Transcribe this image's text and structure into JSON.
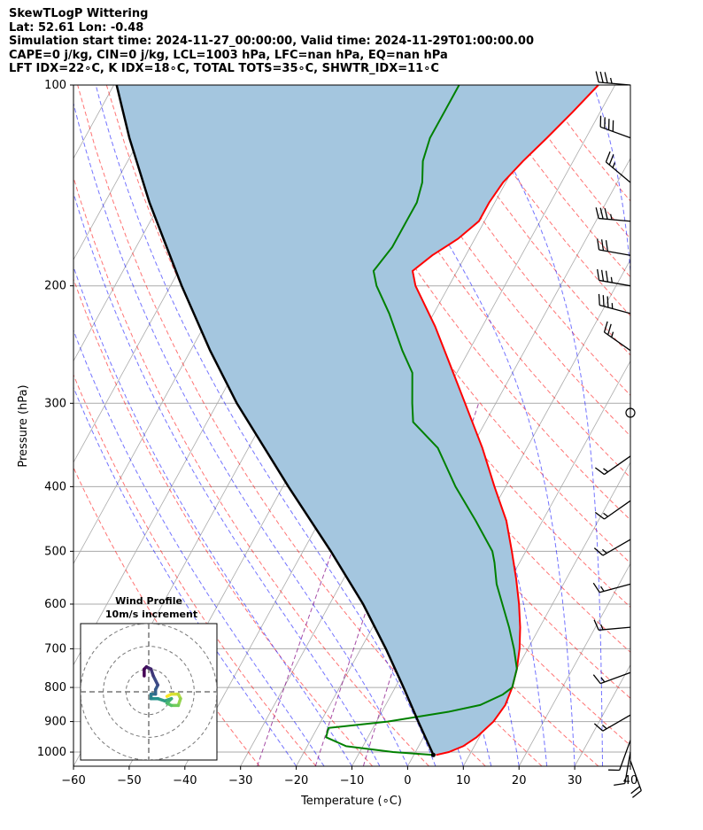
{
  "header": {
    "line1": "SkewTLogP Wittering",
    "line2": "Lat: 52.61   Lon: -0.48",
    "line3": "Simulation start time: 2024-11-27_00:00:00, Valid time: 2024-11-29T01:00:00.00",
    "line4": "CAPE=0 j/kg, CIN=0 j/kg, LCL=1003 hPa, LFC=nan hPa, EQ=nan hPa",
    "line5": "LFT IDX=22∘C, K IDX=18∘C, TOTAL TOTS=35∘C, SHWTR_IDX=11∘C"
  },
  "colors": {
    "temperature": "#ff0000",
    "dewpoint": "#008000",
    "parcel": "#000000",
    "shade": "#a4c6df",
    "dry_adiabat": "#ff0000",
    "moist_adiabat": "#0000ff",
    "mixing_ratio": "#800080",
    "isotherm": "#aaaaaa",
    "hodograph_start": "#440154",
    "hodograph_end": "#fde725"
  },
  "chart_data": {
    "type": "skew-t",
    "xlabel": "Temperature (∘C)",
    "ylabel": "Pressure (hPa)",
    "x_ticks": [
      -60,
      -50,
      -40,
      -30,
      -20,
      -10,
      0,
      10,
      20,
      30,
      40
    ],
    "y_ticks": [
      100,
      200,
      300,
      400,
      500,
      600,
      700,
      800,
      900,
      1000
    ],
    "xlim": [
      -60,
      40
    ],
    "ylim": [
      1050,
      100
    ],
    "grid": true,
    "temperature": [
      {
        "p": 1010,
        "t": 4.0
      },
      {
        "p": 1000,
        "t": 6.0
      },
      {
        "p": 980,
        "t": 8.0
      },
      {
        "p": 950,
        "t": 9.5
      },
      {
        "p": 900,
        "t": 11.0
      },
      {
        "p": 850,
        "t": 11.5
      },
      {
        "p": 800,
        "t": 11.0
      },
      {
        "p": 750,
        "t": 10.0
      },
      {
        "p": 700,
        "t": 8.5
      },
      {
        "p": 650,
        "t": 6.5
      },
      {
        "p": 600,
        "t": 4.0
      },
      {
        "p": 550,
        "t": 1.0
      },
      {
        "p": 500,
        "t": -2.5
      },
      {
        "p": 450,
        "t": -6.5
      },
      {
        "p": 400,
        "t": -12.0
      },
      {
        "p": 350,
        "t": -18.0
      },
      {
        "p": 300,
        "t": -25.5
      },
      {
        "p": 260,
        "t": -32.5
      },
      {
        "p": 230,
        "t": -38.5
      },
      {
        "p": 200,
        "t": -46.0
      },
      {
        "p": 190,
        "t": -48.0
      },
      {
        "p": 180,
        "t": -46.0
      },
      {
        "p": 170,
        "t": -43.0
      },
      {
        "p": 160,
        "t": -41.0
      },
      {
        "p": 150,
        "t": -41.0
      },
      {
        "p": 140,
        "t": -40.5
      },
      {
        "p": 130,
        "t": -39.0
      },
      {
        "p": 120,
        "t": -37.0
      },
      {
        "p": 110,
        "t": -35.0
      },
      {
        "p": 100,
        "t": -33.0
      }
    ],
    "dewpoint": [
      {
        "p": 1010,
        "t": 3.5
      },
      {
        "p": 1000,
        "t": -4.0
      },
      {
        "p": 980,
        "t": -13.0
      },
      {
        "p": 950,
        "t": -17.5
      },
      {
        "p": 920,
        "t": -18.0
      },
      {
        "p": 900,
        "t": -8.0
      },
      {
        "p": 870,
        "t": 2.0
      },
      {
        "p": 850,
        "t": 7.0
      },
      {
        "p": 820,
        "t": 10.0
      },
      {
        "p": 800,
        "t": 11.0
      },
      {
        "p": 750,
        "t": 10.0
      },
      {
        "p": 700,
        "t": 7.5
      },
      {
        "p": 650,
        "t": 4.5
      },
      {
        "p": 600,
        "t": 1.0
      },
      {
        "p": 560,
        "t": -2.0
      },
      {
        "p": 520,
        "t": -4.5
      },
      {
        "p": 500,
        "t": -6.0
      },
      {
        "p": 450,
        "t": -12.0
      },
      {
        "p": 400,
        "t": -19.0
      },
      {
        "p": 350,
        "t": -26.0
      },
      {
        "p": 320,
        "t": -33.0
      },
      {
        "p": 300,
        "t": -35.0
      },
      {
        "p": 270,
        "t": -38.0
      },
      {
        "p": 250,
        "t": -42.0
      },
      {
        "p": 220,
        "t": -48.0
      },
      {
        "p": 200,
        "t": -53.0
      },
      {
        "p": 190,
        "t": -55.0
      },
      {
        "p": 175,
        "t": -54.0
      },
      {
        "p": 160,
        "t": -54.0
      },
      {
        "p": 150,
        "t": -54.0
      },
      {
        "p": 140,
        "t": -55.0
      },
      {
        "p": 130,
        "t": -57.0
      },
      {
        "p": 120,
        "t": -58.0
      },
      {
        "p": 110,
        "t": -58.0
      },
      {
        "p": 100,
        "t": -58.0
      }
    ],
    "parcel": [
      {
        "p": 1010,
        "t": 3.5
      },
      {
        "p": 1000,
        "t": 3.0
      },
      {
        "p": 900,
        "t": -2.5
      },
      {
        "p": 800,
        "t": -8.5
      },
      {
        "p": 700,
        "t": -15.5
      },
      {
        "p": 600,
        "t": -24.0
      },
      {
        "p": 500,
        "t": -35.0
      },
      {
        "p": 400,
        "t": -49.0
      },
      {
        "p": 300,
        "t": -66.5
      },
      {
        "p": 250,
        "t": -76.5
      },
      {
        "p": 200,
        "t": -88.0
      },
      {
        "p": 150,
        "t": -102.0
      },
      {
        "p": 120,
        "t": -112.0
      },
      {
        "p": 100,
        "t": -119.5
      }
    ],
    "wind_barbs": [
      {
        "p": 100,
        "speed_kt": 35,
        "dir_deg": 275
      },
      {
        "p": 120,
        "speed_kt": 40,
        "dir_deg": 290
      },
      {
        "p": 140,
        "speed_kt": 25,
        "dir_deg": 310
      },
      {
        "p": 160,
        "speed_kt": 35,
        "dir_deg": 275
      },
      {
        "p": 180,
        "speed_kt": 30,
        "dir_deg": 280
      },
      {
        "p": 200,
        "speed_kt": 35,
        "dir_deg": 280
      },
      {
        "p": 220,
        "speed_kt": 35,
        "dir_deg": 285
      },
      {
        "p": 250,
        "speed_kt": 25,
        "dir_deg": 305
      },
      {
        "p": 310,
        "speed_kt": 0,
        "dir_deg": 0
      },
      {
        "p": 360,
        "speed_kt": 15,
        "dir_deg": 235
      },
      {
        "p": 420,
        "speed_kt": 15,
        "dir_deg": 235
      },
      {
        "p": 480,
        "speed_kt": 15,
        "dir_deg": 240
      },
      {
        "p": 560,
        "speed_kt": 15,
        "dir_deg": 255
      },
      {
        "p": 650,
        "speed_kt": 15,
        "dir_deg": 265
      },
      {
        "p": 760,
        "speed_kt": 15,
        "dir_deg": 250
      },
      {
        "p": 880,
        "speed_kt": 15,
        "dir_deg": 240
      },
      {
        "p": 960,
        "speed_kt": 10,
        "dir_deg": 200
      },
      {
        "p": 1000,
        "speed_kt": 10,
        "dir_deg": 190
      },
      {
        "p": 1030,
        "speed_kt": 20,
        "dir_deg": 160
      }
    ],
    "hodograph": {
      "title_line1": "Wind Profile",
      "title_line2": "10m/s increment",
      "rings_mps": [
        10,
        20,
        30
      ],
      "max_mps": 30,
      "points_mps": [
        {
          "u": 8,
          "v": -2
        },
        {
          "u": 10,
          "v": -1
        },
        {
          "u": 13,
          "v": -1
        },
        {
          "u": 14,
          "v": -3
        },
        {
          "u": 13,
          "v": -6
        },
        {
          "u": 10,
          "v": -6
        },
        {
          "u": 8,
          "v": -5
        },
        {
          "u": 10,
          "v": -3
        },
        {
          "u": 7,
          "v": -4
        },
        {
          "u": 4,
          "v": -3
        },
        {
          "u": 1,
          "v": -3
        },
        {
          "u": 1,
          "v": -1
        },
        {
          "u": 3,
          "v": -1
        },
        {
          "u": 3,
          "v": 1
        },
        {
          "u": 4,
          "v": 3
        },
        {
          "u": 2,
          "v": 7
        },
        {
          "u": 1,
          "v": 10
        },
        {
          "u": -1,
          "v": 11
        },
        {
          "u": -2,
          "v": 10
        },
        {
          "u": -2,
          "v": 7
        }
      ]
    }
  }
}
